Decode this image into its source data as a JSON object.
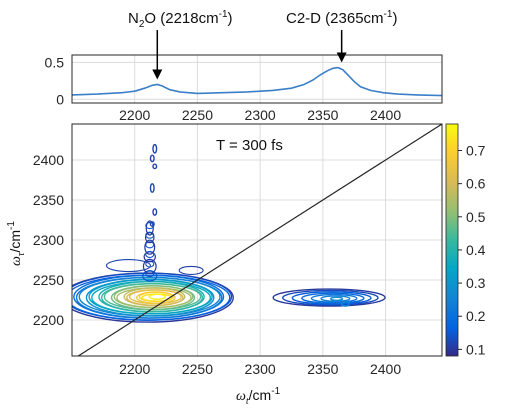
{
  "chart_data": [
    {
      "type": "line",
      "panel": "ftir-spectrum",
      "xlim": [
        2150,
        2445
      ],
      "ylim": [
        -0.05,
        0.6
      ],
      "xticks": [
        2200,
        2250,
        2300,
        2350,
        2400
      ],
      "yticks": [
        0,
        0.5
      ],
      "ytick_labels": [
        "0",
        "0.5"
      ],
      "grid": true,
      "color": "#3a7fc8",
      "x": [
        2150,
        2170,
        2190,
        2200,
        2208,
        2214,
        2218,
        2222,
        2228,
        2236,
        2250,
        2270,
        2290,
        2310,
        2325,
        2335,
        2342,
        2348,
        2353,
        2358,
        2362,
        2366,
        2370,
        2375,
        2380,
        2388,
        2398,
        2410,
        2425,
        2445
      ],
      "y": [
        0.06,
        0.07,
        0.09,
        0.11,
        0.15,
        0.19,
        0.2,
        0.18,
        0.13,
        0.1,
        0.08,
        0.09,
        0.1,
        0.12,
        0.15,
        0.2,
        0.26,
        0.33,
        0.38,
        0.42,
        0.43,
        0.4,
        0.33,
        0.24,
        0.17,
        0.12,
        0.09,
        0.07,
        0.06,
        0.05
      ],
      "annotations": [
        {
          "text_main": "N",
          "text_sub": "2",
          "text_rest": "O (2218cm",
          "text_sup": "-1",
          "text_end": ")",
          "x": 2218
        },
        {
          "text_main": "C2-D (2365cm",
          "text_sup": "-1",
          "text_end": ")",
          "x": 2365
        }
      ]
    },
    {
      "type": "heatmap",
      "panel": "2d-ir-contour",
      "xlim": [
        2150,
        2445
      ],
      "ylim": [
        2155,
        2445
      ],
      "xticks": [
        2200,
        2250,
        2300,
        2350,
        2400
      ],
      "yticks": [
        2200,
        2250,
        2300,
        2350,
        2400
      ],
      "xlabel_main": "ω",
      "xlabel_sub": "t",
      "xlabel_rest": "/cm",
      "xlabel_sup": "-1",
      "ylabel_main": "ω",
      "ylabel_sub": "τ",
      "ylabel_rest": "/cm",
      "ylabel_sup": "-1",
      "annotation": "T = 300 fs",
      "grid": true,
      "diagonal": true,
      "colorbar": {
        "ticks": [
          0.1,
          0.2,
          0.3,
          0.4,
          0.5,
          0.6,
          0.7
        ],
        "tick_labels": [
          "0.1",
          "0.2",
          "0.3",
          "0.4",
          "0.5",
          "0.6",
          "0.7"
        ],
        "range": [
          0.08,
          0.78
        ],
        "colormap": "parula"
      },
      "features": [
        {
          "name": "N2O diagonal peak",
          "x_center": 2218,
          "y_center": 2230,
          "peak_value": 0.78
        },
        {
          "name": "C2-D cross peak",
          "x_center": 2355,
          "y_center": 2228,
          "peak_value": 0.25
        }
      ]
    }
  ]
}
